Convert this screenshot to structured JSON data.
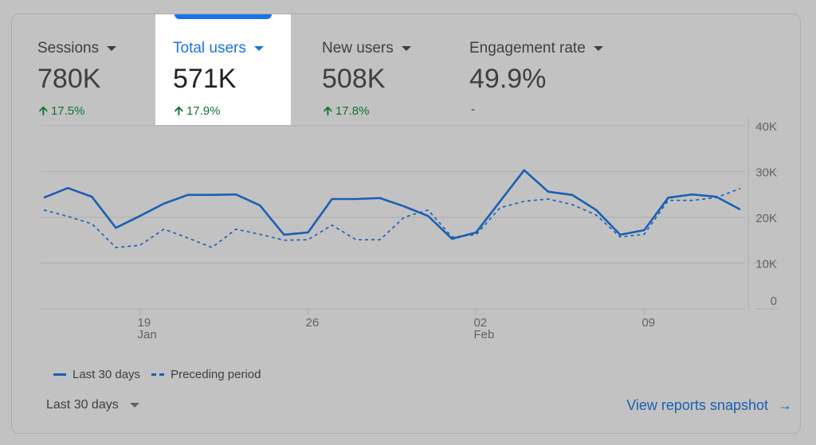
{
  "metrics": [
    {
      "label": "Sessions",
      "value": "780K",
      "change": "17.5%",
      "trend": "up",
      "active": false
    },
    {
      "label": "Total users",
      "value": "571K",
      "change": "17.9%",
      "trend": "up",
      "active": true
    },
    {
      "label": "New users",
      "value": "508K",
      "change": "17.8%",
      "trend": "up",
      "active": false
    },
    {
      "label": "Engagement rate",
      "value": "49.9%",
      "change": "-",
      "trend": "none",
      "active": false
    }
  ],
  "colors": {
    "accent": "#1a73e8",
    "line": "#1a5fb4",
    "positive": "#137333"
  },
  "chart_data": {
    "type": "line",
    "x_start": "Jan 15",
    "x_end": "Feb 13",
    "x_ticks": [
      {
        "label": "19",
        "sub": "Jan",
        "index": 4
      },
      {
        "label": "26",
        "sub": "",
        "index": 11
      },
      {
        "label": "02",
        "sub": "Feb",
        "index": 18
      },
      {
        "label": "09",
        "sub": "",
        "index": 25
      }
    ],
    "y_ticks": [
      "0",
      "10K",
      "20K",
      "30K",
      "40K"
    ],
    "ylim": [
      0,
      40000
    ],
    "grid": true,
    "legend_position": "bottom-left",
    "series": [
      {
        "name": "Last 30 days",
        "style": "solid",
        "values": [
          24300,
          26400,
          24500,
          17700,
          20300,
          23000,
          24900,
          24900,
          25000,
          22600,
          16200,
          16700,
          24000,
          24000,
          24200,
          22400,
          20300,
          15300,
          16700,
          23500,
          30300,
          25600,
          24900,
          21600,
          16200,
          17200,
          24300,
          25000,
          24500,
          21700
        ]
      },
      {
        "name": "Preceding period",
        "style": "dashed",
        "values": [
          21600,
          20200,
          18600,
          13400,
          13900,
          17400,
          15500,
          13400,
          17400,
          16300,
          15000,
          15100,
          18300,
          15100,
          15100,
          20000,
          21600,
          15700,
          16200,
          22100,
          23500,
          24000,
          22800,
          20500,
          15700,
          16300,
          23700,
          23700,
          24300,
          26300
        ]
      }
    ]
  },
  "footer": {
    "range_label": "Last 30 days",
    "snapshot_link": "View reports snapshot"
  }
}
